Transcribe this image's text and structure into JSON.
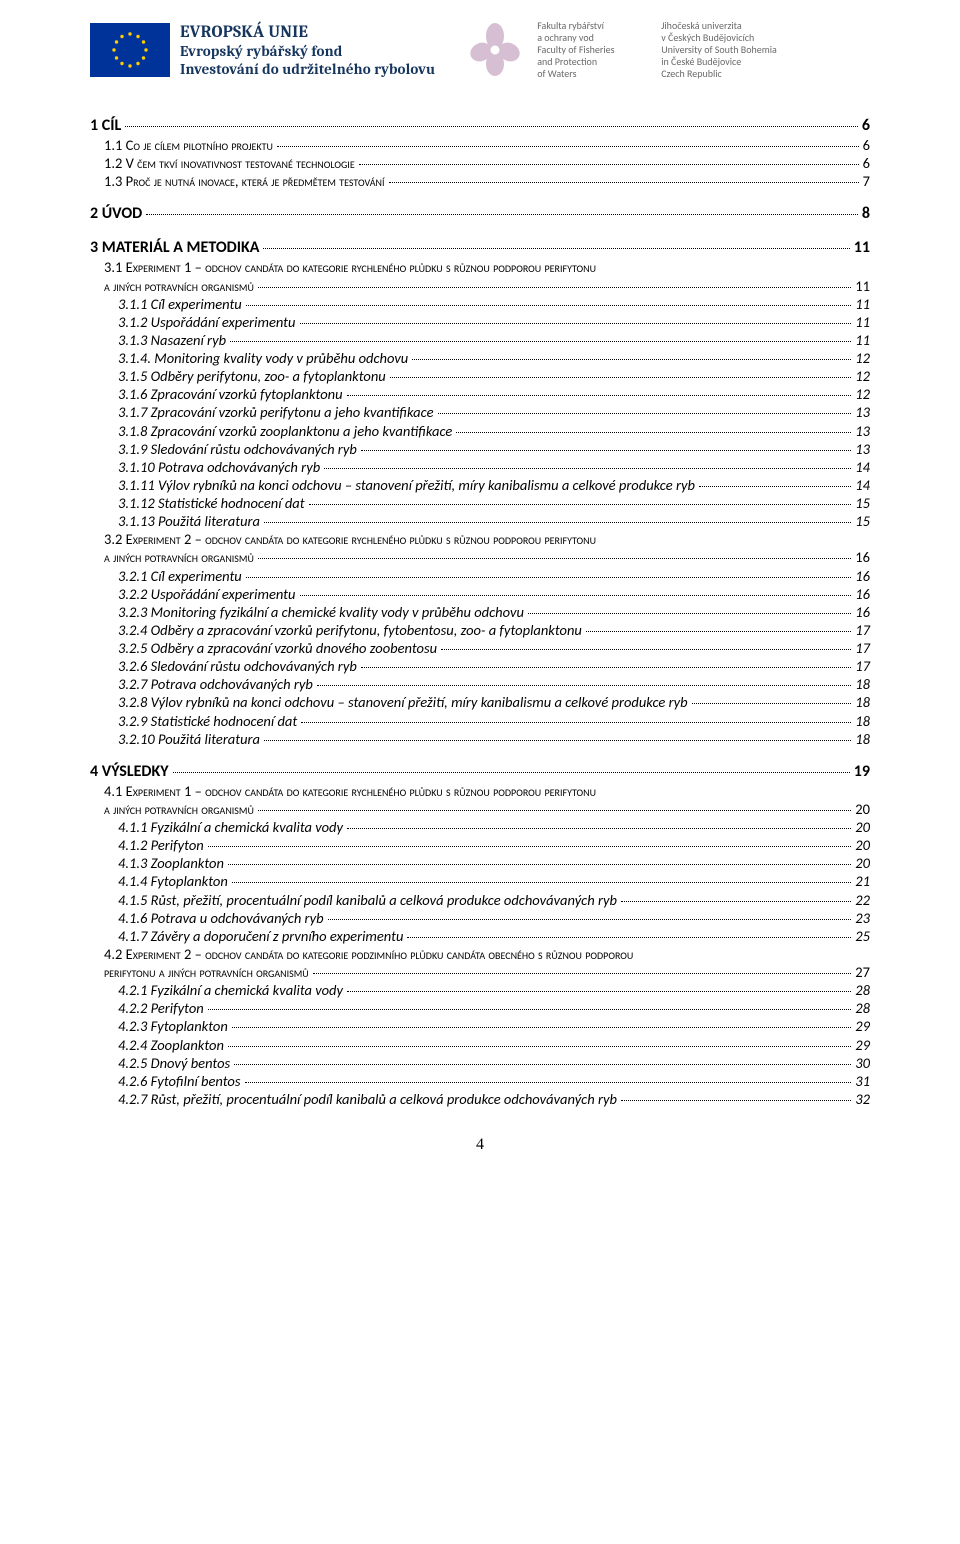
{
  "colors": {
    "text": "#000000",
    "background": "#ffffff",
    "euText": "#17365d",
    "euFlagBg": "#003399",
    "euStar": "#ffcc00",
    "logoLeaf": "#d7bfd3",
    "grayText": "#6b6b6b",
    "dotLeader": "#000000"
  },
  "header": {
    "euTitle": "EVROPSKÁ UNIE",
    "euLine1": "Evropský rybářský fond",
    "euLine2": "Investování do udržitelného rybolovu",
    "facultyLines": [
      "Fakulta rybářství",
      "a ochrany vod",
      "Faculty of Fisheries",
      "and Protection",
      "of Waters"
    ],
    "universityLines": [
      "Jihočeská univerzita",
      "v Českých Budějovicích",
      "University of South Bohemia",
      "in České Budějovice",
      "Czech Republic"
    ]
  },
  "toc": [
    {
      "level": 0,
      "label": "1 CÍL",
      "page": "6"
    },
    {
      "level": 1,
      "label": "1.1 Co je cílem pilotního projektu",
      "page": "6"
    },
    {
      "level": 1,
      "label": "1.2 V čem tkví inovativnost testované technologie",
      "page": "6"
    },
    {
      "level": 1,
      "label": "1.3 Proč je nutná inovace, která je předmětem testování",
      "page": "7"
    },
    {
      "level": 0,
      "label": "2 ÚVOD",
      "page": "8"
    },
    {
      "level": 0,
      "label": "3 MATERIÁL A METODIKA",
      "page": "11"
    },
    {
      "level": 1,
      "label": "3.1 Experiment 1 – odchov candáta do kategorie rychleného plůdku s různou podporou perifytonu a jiných potravních organismů",
      "page": "11",
      "wrap": true
    },
    {
      "level": 2,
      "label": "3.1.1 Cíl experimentu",
      "page": "11"
    },
    {
      "level": 2,
      "label": "3.1.2 Uspořádání experimentu",
      "page": "11"
    },
    {
      "level": 2,
      "label": "3.1.3 Nasazení ryb",
      "page": "11"
    },
    {
      "level": 2,
      "label": "3.1.4. Monitoring kvality vody v průběhu odchovu",
      "page": "12"
    },
    {
      "level": 2,
      "label": "3.1.5 Odběry perifytonu, zoo- a fytoplanktonu",
      "page": "12"
    },
    {
      "level": 2,
      "label": "3.1.6 Zpracování vzorků fytoplanktonu",
      "page": "12"
    },
    {
      "level": 2,
      "label": "3.1.7 Zpracování vzorků perifytonu a jeho kvantifikace",
      "page": "13"
    },
    {
      "level": 2,
      "label": "3.1.8 Zpracování vzorků zooplanktonu a jeho kvantifikace",
      "page": "13"
    },
    {
      "level": 2,
      "label": "3.1.9 Sledování růstu odchovávaných ryb",
      "page": "13"
    },
    {
      "level": 2,
      "label": "3.1.10 Potrava odchovávaných ryb",
      "page": "14"
    },
    {
      "level": 2,
      "label": "3.1.11 Výlov rybníků na konci odchovu – stanovení přežití, míry kanibalismu a celkové produkce ryb",
      "page": "14"
    },
    {
      "level": 2,
      "label": "3.1.12  Statistické hodnocení dat",
      "page": "15"
    },
    {
      "level": 2,
      "label": "3.1.13 Použitá literatura",
      "page": "15"
    },
    {
      "level": 1,
      "label": "3.2 Experiment 2 – odchov candáta do kategorie rychleného plůdku s různou podporou perifytonu a jiných potravních organismů",
      "page": "16",
      "wrap": true
    },
    {
      "level": 2,
      "label": "3.2.1 Cíl experimentu",
      "page": "16"
    },
    {
      "level": 2,
      "label": "3.2.2 Uspořádání experimentu",
      "page": "16"
    },
    {
      "level": 2,
      "label": "3.2.3 Monitoring fyzikální a chemické kvality vody v průběhu odchovu",
      "page": "16"
    },
    {
      "level": 2,
      "label": "3.2.4 Odběry a zpracování vzorků perifytonu, fytobentosu, zoo- a fytoplanktonu",
      "page": "17"
    },
    {
      "level": 2,
      "label": "3.2.5 Odběry a zpracování vzorků dnového zoobentosu",
      "page": "17"
    },
    {
      "level": 2,
      "label": "3.2.6 Sledování růstu odchovávaných ryb",
      "page": "17"
    },
    {
      "level": 2,
      "label": "3.2.7 Potrava odchovávaných ryb",
      "page": "18"
    },
    {
      "level": 2,
      "label": "3.2.8 Výlov rybníků na konci odchovu – stanovení přežití, míry kanibalismu a celkové produkce ryb",
      "page": "18"
    },
    {
      "level": 2,
      "label": "3.2.9 Statistické hodnocení dat",
      "page": "18"
    },
    {
      "level": 2,
      "label": "3.2.10 Použitá literatura",
      "page": "18"
    },
    {
      "level": 0,
      "label": "4 VÝSLEDKY",
      "page": "19"
    },
    {
      "level": 1,
      "label": "4.1 Experiment 1 – odchov candáta do kategorie rychleného plůdku s různou podporou perifytonu a jiných potravních organismů",
      "page": "20",
      "wrap": true
    },
    {
      "level": 2,
      "label": "4.1.1 Fyzikální a chemická kvalita vody",
      "page": "20"
    },
    {
      "level": 2,
      "label": "4.1.2 Perifyton",
      "page": "20"
    },
    {
      "level": 2,
      "label": "4.1.3 Zooplankton",
      "page": "20"
    },
    {
      "level": 2,
      "label": "4.1.4 Fytoplankton",
      "page": "21"
    },
    {
      "level": 2,
      "label": "4.1.5 Růst, přežití, procentuální podíl kanibalů a celková produkce odchovávaných ryb",
      "page": "22"
    },
    {
      "level": 2,
      "label": "4.1.6 Potrava u odchovávaných ryb",
      "page": "23"
    },
    {
      "level": 2,
      "label": "4.1.7 Závěry a doporučení z prvního experimentu",
      "page": "25"
    },
    {
      "level": 1,
      "label": "4.2 Experiment 2 – odchov candáta do kategorie podzimního plůdku candáta obecného s různou podporou perifytonu a jiných potravních organismů",
      "page": "27",
      "wrap": true
    },
    {
      "level": 2,
      "label": "4.2.1 Fyzikální a chemická kvalita vody",
      "page": "28"
    },
    {
      "level": 2,
      "label": "4.2.2 Perifyton",
      "page": "28"
    },
    {
      "level": 2,
      "label": "4.2.3 Fytoplankton",
      "page": "29"
    },
    {
      "level": 2,
      "label": "4.2.4 Zooplankton",
      "page": "29"
    },
    {
      "level": 2,
      "label": "4.2.5 Dnový bentos",
      "page": "30"
    },
    {
      "level": 2,
      "label": "4.2.6 Fytofilní bentos",
      "page": "31"
    },
    {
      "level": 2,
      "label": "4.2.7 Růst, přežití, procentuální podíl kanibalů a celková produkce odchovávaných ryb",
      "page": "32"
    }
  ],
  "pageNumber": "4",
  "layout": {
    "pageWidth": 960,
    "pageHeight": 1544,
    "indentStepPx": 14,
    "fontSizes": {
      "lvl0": 16,
      "lvl1And2": 14.5,
      "pageNumber": 16,
      "header": 10
    }
  }
}
